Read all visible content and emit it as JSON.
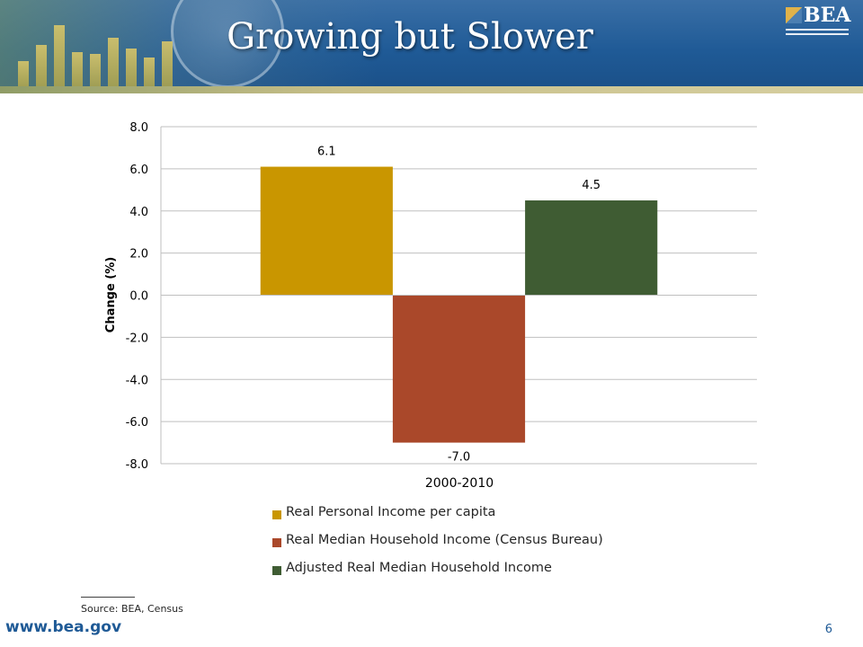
{
  "slide": {
    "title": "Growing but Slower",
    "logo_text": "BEA",
    "source": "Source: BEA, Census",
    "url": "www.bea.gov",
    "page_number": "6"
  },
  "colors": {
    "banner": "#1f5a96",
    "series": [
      "#c99600",
      "#aa482a",
      "#3f5c33"
    ]
  },
  "chart_data": {
    "type": "bar",
    "categories": [
      "2000-2010"
    ],
    "series": [
      {
        "name": "Real Personal Income per capita",
        "values": [
          6.1
        ],
        "label": "6.1"
      },
      {
        "name": "Real Median Household Income (Census Bureau)",
        "values": [
          -7.0
        ],
        "label": "-7.0"
      },
      {
        "name": "Adjusted Real Median Household Income",
        "values": [
          4.5
        ],
        "label": "4.5"
      }
    ],
    "ylabel": "Change (%)",
    "ylim": [
      -8,
      8
    ],
    "yticks": [
      "8.0",
      "6.0",
      "4.0",
      "2.0",
      "0.0",
      "-2.0",
      "-4.0",
      "-6.0",
      "-8.0"
    ],
    "grid": true,
    "legend_position": "bottom"
  }
}
